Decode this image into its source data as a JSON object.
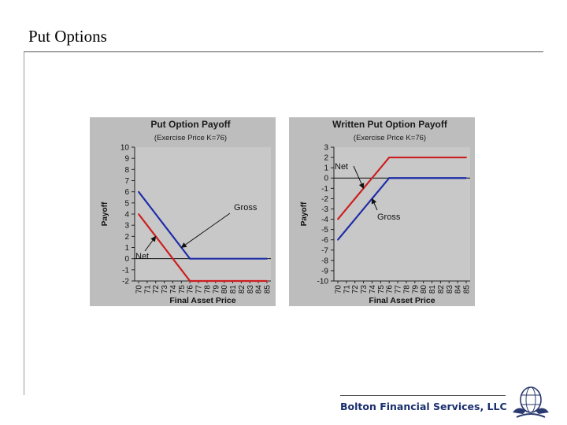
{
  "slide": {
    "title": "Put Options",
    "footer": "Bolton Financial Services, LLC"
  },
  "colors": {
    "panel": "#bdbdbd",
    "plot": "#c8c8c8",
    "gross": "#1f2ea8",
    "net": "#cc1f1f",
    "axis": "#222222"
  },
  "chart_data": [
    {
      "type": "line",
      "title": "Put Option Payoff",
      "subtitle": "(Exercise Price K=76)",
      "xlabel": "Final Asset Price",
      "ylabel": "Payoff",
      "x": [
        70,
        71,
        72,
        73,
        74,
        75,
        76,
        77,
        78,
        79,
        80,
        81,
        82,
        83,
        84,
        85
      ],
      "ylim": [
        -2,
        10
      ],
      "yticks": [
        10,
        9,
        8,
        7,
        6,
        5,
        4,
        3,
        2,
        1,
        0,
        -1,
        -2
      ],
      "grid": false,
      "series": [
        {
          "name": "Gross",
          "x": [
            70,
            71,
            72,
            73,
            74,
            75,
            76,
            85
          ],
          "values": [
            6,
            5,
            4,
            3,
            2,
            1,
            0,
            0
          ]
        },
        {
          "name": "Net",
          "x": [
            70,
            71,
            72,
            73,
            74,
            75,
            76,
            85
          ],
          "values": [
            4,
            3,
            2,
            1,
            0,
            -1,
            -2,
            -2
          ]
        }
      ],
      "annotations": [
        {
          "text": "Gross",
          "target": "Gross",
          "x": 75,
          "y": 1
        },
        {
          "text": "Net",
          "target": "Net",
          "x": 72,
          "y": 2
        }
      ]
    },
    {
      "type": "line",
      "title": "Written Put Option Payoff",
      "subtitle": "(Exercise Price K=76)",
      "xlabel": "Final Asset Price",
      "ylabel": "Payoff",
      "x": [
        70,
        71,
        72,
        73,
        74,
        75,
        76,
        77,
        78,
        79,
        80,
        81,
        82,
        83,
        84,
        85
      ],
      "ylim": [
        -10,
        3
      ],
      "yticks": [
        3,
        2,
        1,
        0,
        -1,
        -2,
        -3,
        -4,
        -5,
        -6,
        -7,
        -8,
        -9,
        -10
      ],
      "grid": false,
      "series": [
        {
          "name": "Gross",
          "x": [
            70,
            71,
            72,
            73,
            74,
            75,
            76,
            85
          ],
          "values": [
            -6,
            -5,
            -4,
            -3,
            -2,
            -1,
            0,
            0
          ]
        },
        {
          "name": "Net",
          "x": [
            70,
            71,
            72,
            73,
            74,
            75,
            76,
            85
          ],
          "values": [
            -4,
            -3,
            -2,
            -1,
            0,
            1,
            2,
            2
          ]
        }
      ],
      "annotations": [
        {
          "text": "Net",
          "target": "Net",
          "x": 73,
          "y": -1
        },
        {
          "text": "Gross",
          "target": "Gross",
          "x": 74,
          "y": -2
        }
      ]
    }
  ]
}
